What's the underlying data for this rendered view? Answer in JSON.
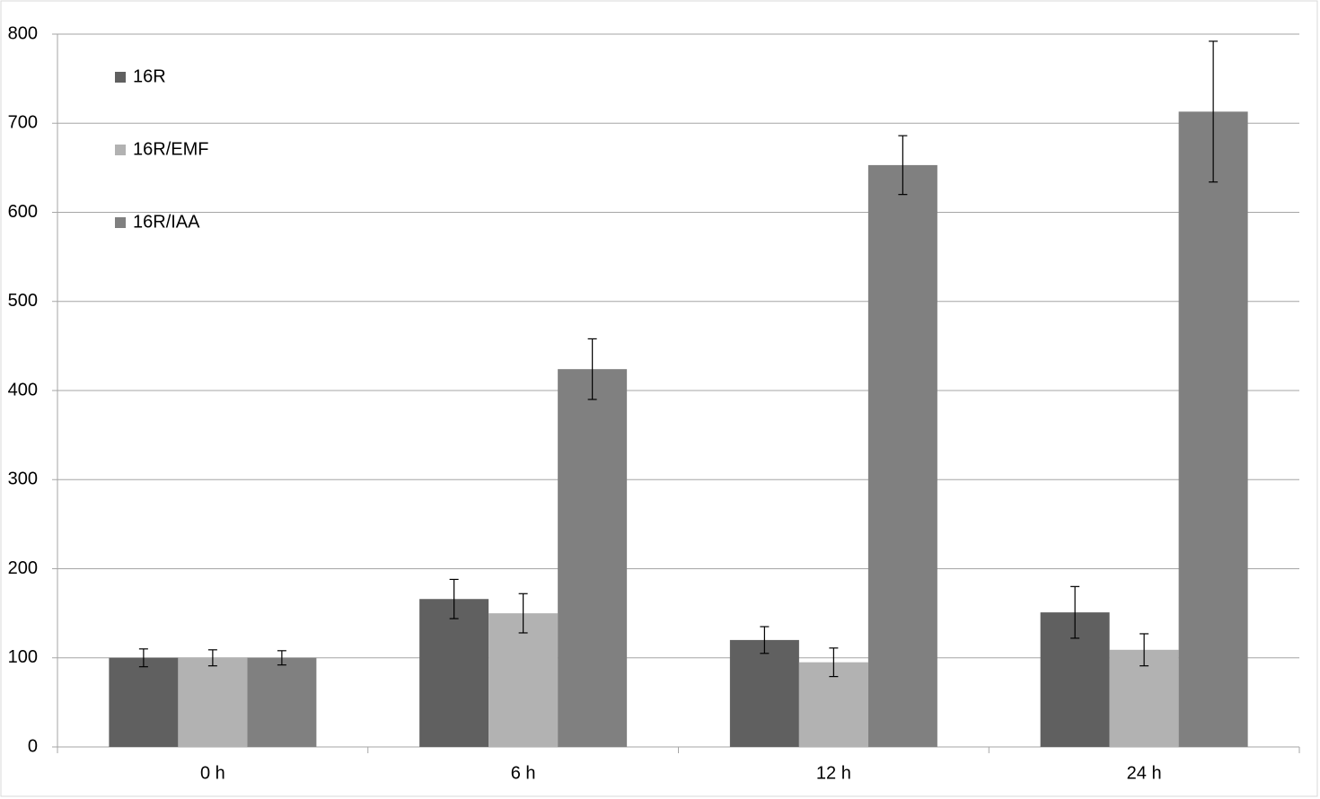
{
  "chart_data": {
    "type": "bar",
    "categories": [
      "0 h",
      "6 h",
      "12 h",
      "24 h"
    ],
    "series": [
      {
        "name": "16R",
        "color": "#606060",
        "values": [
          100,
          166,
          120,
          151
        ],
        "errors": [
          10,
          22,
          15,
          29
        ]
      },
      {
        "name": "16R/EMF",
        "color": "#b2b2b2",
        "values": [
          100,
          150,
          95,
          109
        ],
        "errors": [
          9,
          22,
          16,
          18
        ]
      },
      {
        "name": "16R/IAA",
        "color": "#808080",
        "values": [
          100,
          424,
          653,
          713
        ],
        "errors": [
          8,
          34,
          33,
          79
        ]
      }
    ],
    "ylim": [
      0,
      800
    ],
    "yticks": [
      0,
      100,
      200,
      300,
      400,
      500,
      600,
      700,
      800
    ],
    "grid": true,
    "legend": "top-left"
  }
}
